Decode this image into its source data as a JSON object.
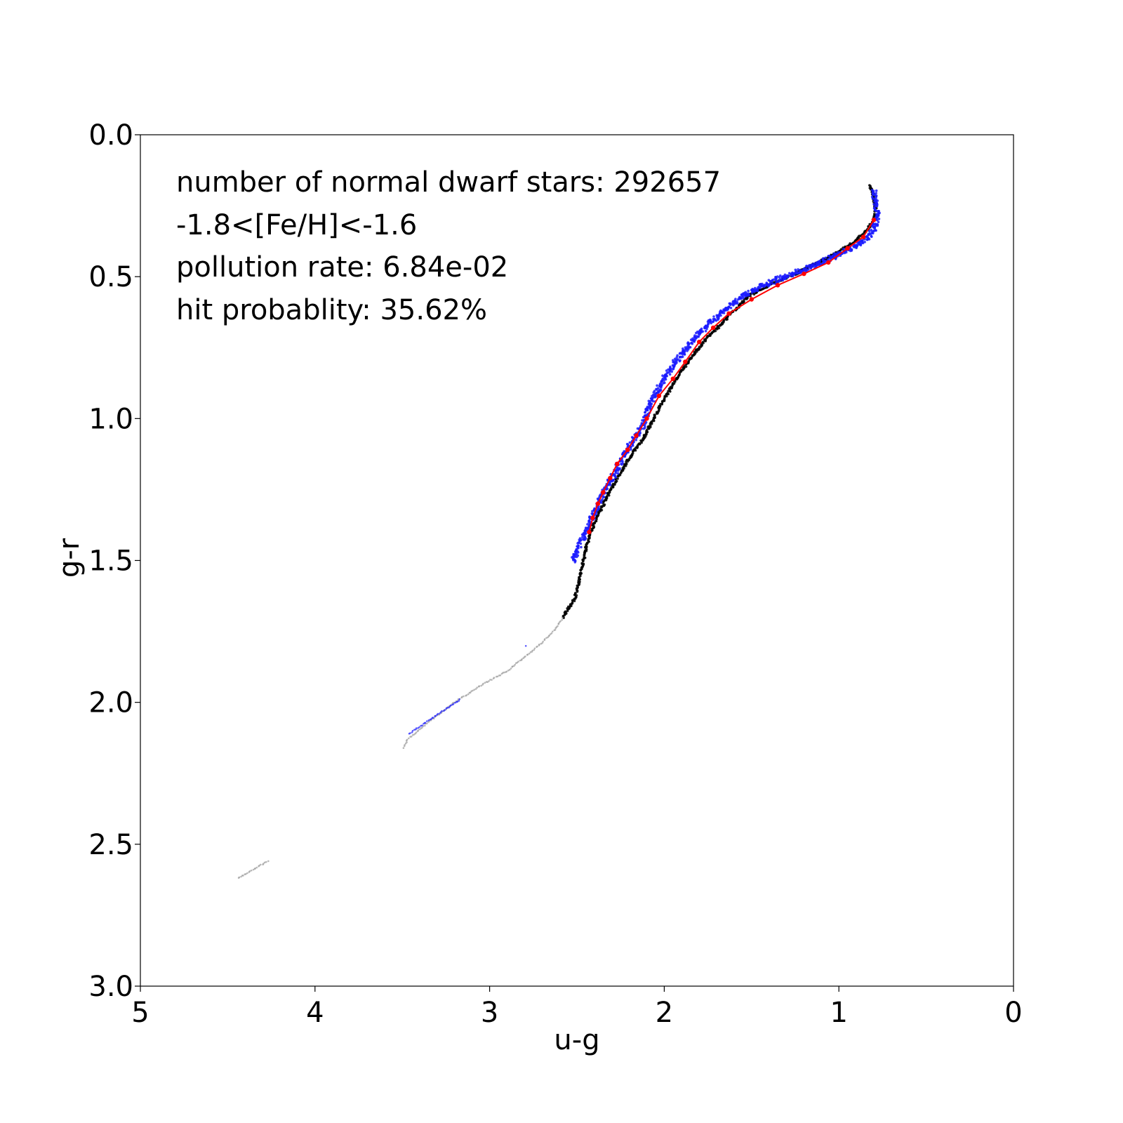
{
  "chart_data": {
    "type": "scatter",
    "xlabel": "u-g",
    "ylabel": "g-r",
    "xlim": [
      5,
      0
    ],
    "ylim": [
      3.0,
      0.0
    ],
    "x_inverted": true,
    "y_inverted": true,
    "grid": false,
    "x_ticks": [
      "5",
      "4",
      "3",
      "2",
      "1",
      "0"
    ],
    "y_ticks": [
      "0.0",
      "0.5",
      "1.0",
      "1.5",
      "2.0",
      "2.5",
      "3.0"
    ],
    "annotations": [
      "number of normal dwarf stars: 292657",
      "-1.8<[Fe/H]<-1.6",
      "pollution rate: 6.84e-02",
      "hit probablity: 35.62%"
    ],
    "colors": {
      "normal": "#000000",
      "polluted": "#1a1aff",
      "fit": "#ff0000",
      "sparse": "#9a9a9a"
    },
    "series": [
      {
        "role": "normal-locus",
        "color": "#000000",
        "points": [
          [
            0.82,
            0.18
          ],
          [
            0.8,
            0.22
          ],
          [
            0.79,
            0.26
          ],
          [
            0.8,
            0.3
          ],
          [
            0.84,
            0.34
          ],
          [
            0.92,
            0.38
          ],
          [
            1.02,
            0.42
          ],
          [
            1.12,
            0.45
          ],
          [
            1.25,
            0.49
          ],
          [
            1.4,
            0.53
          ],
          [
            1.52,
            0.57
          ],
          [
            1.6,
            0.62
          ],
          [
            1.68,
            0.67
          ],
          [
            1.76,
            0.72
          ],
          [
            1.84,
            0.78
          ],
          [
            1.92,
            0.85
          ],
          [
            2.0,
            0.93
          ],
          [
            2.06,
            1.0
          ],
          [
            2.12,
            1.07
          ],
          [
            2.2,
            1.14
          ],
          [
            2.27,
            1.21
          ],
          [
            2.33,
            1.28
          ],
          [
            2.38,
            1.34
          ],
          [
            2.42,
            1.4
          ],
          [
            2.45,
            1.46
          ],
          [
            2.47,
            1.52
          ],
          [
            2.49,
            1.58
          ],
          [
            2.51,
            1.63
          ],
          [
            2.62,
            1.74
          ],
          [
            2.7,
            1.79
          ],
          [
            2.8,
            1.84
          ],
          [
            2.9,
            1.89
          ],
          [
            3.05,
            1.94
          ],
          [
            3.2,
            2.0
          ],
          [
            3.35,
            2.07
          ],
          [
            3.47,
            2.13
          ],
          [
            3.49,
            2.16
          ],
          [
            4.27,
            2.56
          ],
          [
            4.44,
            2.62
          ]
        ]
      },
      {
        "role": "polluted-stars",
        "color": "#1a1aff",
        "points": [
          [
            0.8,
            0.2
          ],
          [
            0.79,
            0.24
          ],
          [
            0.78,
            0.28
          ],
          [
            0.79,
            0.32
          ],
          [
            0.83,
            0.36
          ],
          [
            0.9,
            0.39
          ],
          [
            1.0,
            0.42
          ],
          [
            1.1,
            0.45
          ],
          [
            1.22,
            0.48
          ],
          [
            1.35,
            0.51
          ],
          [
            1.5,
            0.55
          ],
          [
            1.62,
            0.6
          ],
          [
            1.72,
            0.65
          ],
          [
            1.8,
            0.7
          ],
          [
            1.88,
            0.76
          ],
          [
            1.96,
            0.82
          ],
          [
            2.02,
            0.88
          ],
          [
            2.08,
            0.95
          ],
          [
            2.12,
            1.02
          ],
          [
            2.18,
            1.08
          ],
          [
            2.24,
            1.14
          ],
          [
            2.29,
            1.2
          ],
          [
            2.35,
            1.26
          ],
          [
            2.4,
            1.33
          ],
          [
            2.45,
            1.4
          ],
          [
            2.52,
            1.5
          ],
          [
            2.79,
            1.8
          ],
          [
            3.17,
            1.99
          ],
          [
            3.46,
            2.11
          ]
        ]
      },
      {
        "role": "fit-curve",
        "color": "#ff0000",
        "points": [
          [
            0.8,
            0.3
          ],
          [
            0.86,
            0.36
          ],
          [
            0.95,
            0.4
          ],
          [
            1.06,
            0.45
          ],
          [
            1.2,
            0.49
          ],
          [
            1.35,
            0.53
          ],
          [
            1.5,
            0.58
          ],
          [
            1.63,
            0.63
          ],
          [
            1.72,
            0.68
          ],
          [
            1.8,
            0.73
          ],
          [
            1.88,
            0.8
          ],
          [
            1.95,
            0.86
          ],
          [
            2.03,
            0.92
          ],
          [
            2.1,
            1.0
          ],
          [
            2.16,
            1.06
          ],
          [
            2.21,
            1.11
          ],
          [
            2.27,
            1.16
          ],
          [
            2.31,
            1.21
          ],
          [
            2.35,
            1.26
          ],
          [
            2.38,
            1.3
          ],
          [
            2.41,
            1.35
          ],
          [
            2.43,
            1.4
          ]
        ]
      }
    ]
  }
}
